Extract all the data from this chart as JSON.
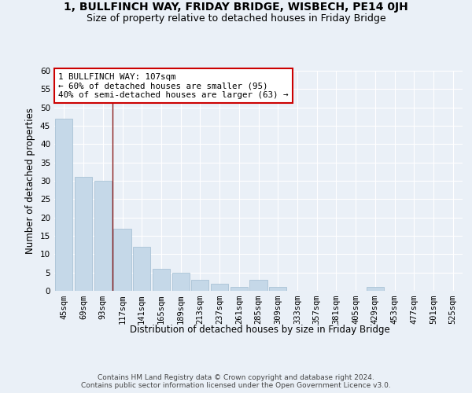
{
  "title_line1": "1, BULLFINCH WAY, FRIDAY BRIDGE, WISBECH, PE14 0JH",
  "title_line2": "Size of property relative to detached houses in Friday Bridge",
  "xlabel": "Distribution of detached houses by size in Friday Bridge",
  "ylabel": "Number of detached properties",
  "categories": [
    "45sqm",
    "69sqm",
    "93sqm",
    "117sqm",
    "141sqm",
    "165sqm",
    "189sqm",
    "213sqm",
    "237sqm",
    "261sqm",
    "285sqm",
    "309sqm",
    "333sqm",
    "357sqm",
    "381sqm",
    "405sqm",
    "429sqm",
    "453sqm",
    "477sqm",
    "501sqm",
    "525sqm"
  ],
  "values": [
    47,
    31,
    30,
    17,
    12,
    6,
    5,
    3,
    2,
    1,
    3,
    1,
    0,
    0,
    0,
    0,
    1,
    0,
    0,
    0,
    0
  ],
  "bar_color": "#c5d8e8",
  "bar_edge_color": "#a0bcd0",
  "vline_x": 2.5,
  "vline_color": "#8b1a1a",
  "annotation_text": "1 BULLFINCH WAY: 107sqm\n← 60% of detached houses are smaller (95)\n40% of semi-detached houses are larger (63) →",
  "annotation_box_color": "white",
  "annotation_box_edge": "#cc0000",
  "ylim": [
    0,
    60
  ],
  "yticks": [
    0,
    5,
    10,
    15,
    20,
    25,
    30,
    35,
    40,
    45,
    50,
    55,
    60
  ],
  "bg_color": "#eaf0f7",
  "plot_bg_color": "#eaf0f7",
  "footer_text": "Contains HM Land Registry data © Crown copyright and database right 2024.\nContains public sector information licensed under the Open Government Licence v3.0.",
  "title_fontsize": 10,
  "subtitle_fontsize": 9,
  "axis_label_fontsize": 8.5,
  "tick_fontsize": 7.5,
  "annotation_fontsize": 7.8,
  "footer_fontsize": 6.5
}
